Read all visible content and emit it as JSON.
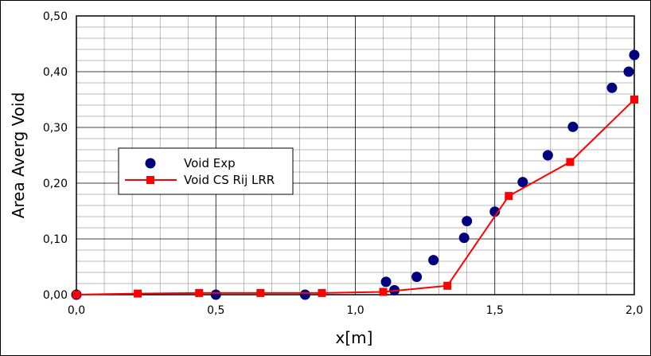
{
  "chart_data": {
    "type": "scatter",
    "xlabel": "x[m]",
    "ylabel": "Area Averg Void",
    "xlim": [
      0.0,
      2.0
    ],
    "ylim": [
      0.0,
      0.5
    ],
    "x_ticks": [
      "0,0",
      "0,5",
      "1,0",
      "1,5",
      "2,0"
    ],
    "y_ticks": [
      "0,00",
      "0,10",
      "0,20",
      "0,30",
      "0,40",
      "0,50"
    ],
    "grid": true,
    "legend_position": "center-left",
    "series": [
      {
        "name": "Void Exp",
        "style": "markers",
        "marker": "circle",
        "color": "#00007f",
        "points": [
          {
            "x": 0.0,
            "y": 0.0
          },
          {
            "x": 0.5,
            "y": 0.0
          },
          {
            "x": 0.82,
            "y": 0.0
          },
          {
            "x": 1.11,
            "y": 0.023
          },
          {
            "x": 1.14,
            "y": 0.008
          },
          {
            "x": 1.22,
            "y": 0.032
          },
          {
            "x": 1.28,
            "y": 0.062
          },
          {
            "x": 1.39,
            "y": 0.102
          },
          {
            "x": 1.4,
            "y": 0.132
          },
          {
            "x": 1.5,
            "y": 0.149
          },
          {
            "x": 1.6,
            "y": 0.202
          },
          {
            "x": 1.69,
            "y": 0.25
          },
          {
            "x": 1.78,
            "y": 0.301
          },
          {
            "x": 1.92,
            "y": 0.371
          },
          {
            "x": 1.98,
            "y": 0.4
          },
          {
            "x": 2.0,
            "y": 0.43
          }
        ]
      },
      {
        "name": "Void CS Rij LRR",
        "style": "line-markers",
        "marker": "square",
        "color": "#ff0000",
        "points": [
          {
            "x": 0.0,
            "y": 0.0
          },
          {
            "x": 0.22,
            "y": 0.002
          },
          {
            "x": 0.44,
            "y": 0.003
          },
          {
            "x": 0.66,
            "y": 0.003
          },
          {
            "x": 0.88,
            "y": 0.003
          },
          {
            "x": 1.1,
            "y": 0.005
          },
          {
            "x": 1.33,
            "y": 0.016
          },
          {
            "x": 1.55,
            "y": 0.177
          },
          {
            "x": 1.77,
            "y": 0.238
          },
          {
            "x": 2.0,
            "y": 0.35
          }
        ]
      }
    ]
  }
}
